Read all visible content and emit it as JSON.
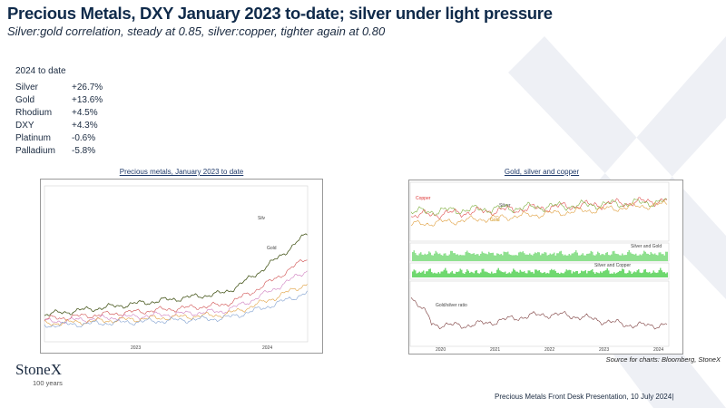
{
  "header": {
    "title": "Precious Metals, DXY January 2023 to-date; silver under light pressure",
    "subtitle": "Silver:gold correlation, steady at 0.85, silver:copper, tighter again at 0.80"
  },
  "performance": {
    "heading": "2024 to date",
    "rows": [
      [
        "Silver",
        "+26.7%"
      ],
      [
        "Gold",
        "+13.6%"
      ],
      [
        "Rhodium",
        "+4.5%"
      ],
      [
        "DXY",
        "+4.3%"
      ],
      [
        "Platinum",
        "-0.6%"
      ],
      [
        "Palladium",
        "-5.8%"
      ]
    ]
  },
  "charts": [
    {
      "caption": "Precious metals, January 2023 to date",
      "labels": [
        "Silv",
        "Gold"
      ],
      "years": [
        "2023",
        "2024"
      ]
    },
    {
      "caption": "Gold, silver and copper",
      "labels": [
        "Copper",
        "Silver",
        "Gold",
        "Silver and Gold",
        "Silver and Copper",
        "Gold/silver ratio"
      ],
      "years": [
        "2020",
        "2021",
        "2022",
        "2023",
        "2024"
      ]
    }
  ],
  "source": "Source for charts: Bloomberg, StoneX",
  "logo": {
    "name": "StoneX",
    "tagline": "100 years"
  },
  "footer": "Precious Metals Front Desk Presentation, 10 July 2024|"
}
